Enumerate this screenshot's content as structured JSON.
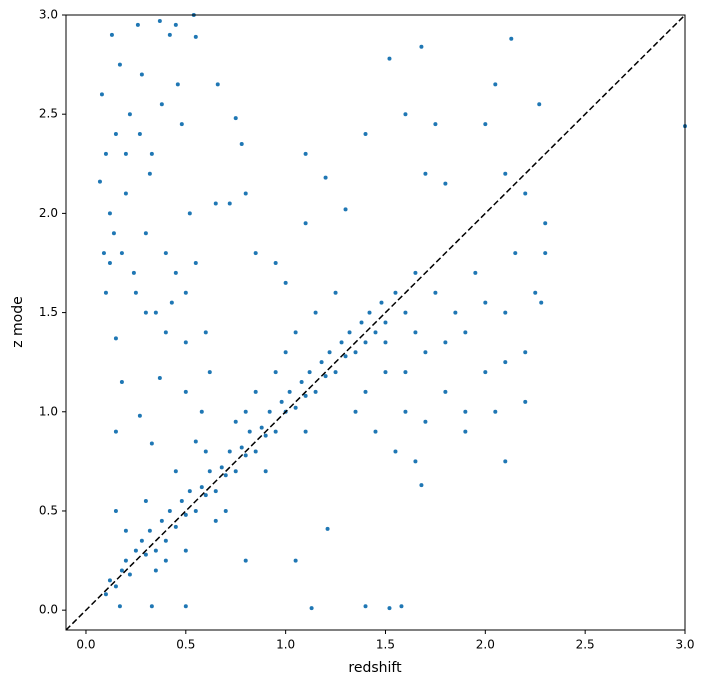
{
  "chart_data": {
    "type": "scatter",
    "xlabel": "redshift",
    "ylabel": "z mode",
    "color": "#1f77b4",
    "identity_line": true,
    "xlim": [
      -0.1,
      3.0
    ],
    "ylim": [
      -0.1,
      3.0
    ],
    "xticks": [
      {
        "value": 0,
        "label": "0.0"
      },
      0.5,
      {
        "value": 1,
        "label": "1.0"
      },
      1.5,
      {
        "value": 2,
        "label": "2.0"
      },
      2.5,
      {
        "value": 3,
        "label": "3.0"
      }
    ],
    "yticks": [
      {
        "value": 0,
        "label": "0.0"
      },
      0.5,
      {
        "value": 1,
        "label": "1.0"
      },
      1.5,
      {
        "value": 2,
        "label": "2.0"
      },
      2.5,
      {
        "value": 3,
        "label": "3.0"
      }
    ],
    "x": [
      0.1,
      0.12,
      0.15,
      0.18,
      0.2,
      0.22,
      0.25,
      0.28,
      0.3,
      0.32,
      0.35,
      0.38,
      0.4,
      0.42,
      0.45,
      0.48,
      0.5,
      0.52,
      0.55,
      0.58,
      0.6,
      0.62,
      0.65,
      0.68,
      0.7,
      0.72,
      0.75,
      0.78,
      0.8,
      0.82,
      0.85,
      0.88,
      0.9,
      0.92,
      0.95,
      0.98,
      1.0,
      1.02,
      1.05,
      1.08,
      1.1,
      1.12,
      1.15,
      1.18,
      1.2,
      1.22,
      1.25,
      1.28,
      1.3,
      1.32,
      1.35,
      1.38,
      1.4,
      1.42,
      1.45,
      1.48,
      1.5,
      1.55,
      1.6,
      1.65,
      0.3,
      0.4,
      0.5,
      0.6,
      0.7,
      0.8,
      0.9,
      1.0,
      1.1,
      0.2,
      0.15,
      0.35,
      0.45,
      0.55,
      0.65,
      0.75,
      0.85,
      0.95,
      1.05,
      1.15,
      1.25,
      0.95,
      0.85,
      1.0,
      1.4,
      1.5,
      1.6,
      1.7,
      1.8,
      1.9,
      2.0,
      2.1,
      2.2,
      2.25,
      1.45,
      1.55,
      1.65,
      1.75,
      1.85,
      1.95,
      2.05,
      2.15,
      2.28,
      1.6,
      1.7,
      1.8,
      1.9,
      2.0,
      2.1,
      2.2,
      2.3,
      1.35,
      1.5,
      1.65,
      2.1,
      1.68,
      1.9,
      2.2,
      2.0,
      2.1,
      2.05,
      2.13,
      2.27,
      1.8,
      1.7,
      1.6,
      1.75,
      2.3,
      1.4,
      1.52,
      1.68,
      1.1,
      1.2,
      1.3,
      1.1,
      3.0,
      1.13,
      1.4,
      1.52,
      1.58,
      1.05,
      0.5,
      0.33,
      0.8,
      1.21,
      0.17,
      0.08,
      0.1,
      0.12,
      0.15,
      0.18,
      0.2,
      0.22,
      0.25,
      0.28,
      0.3,
      0.32,
      0.35,
      0.38,
      0.4,
      0.42,
      0.45,
      0.48,
      0.5,
      0.52,
      0.55,
      0.1,
      0.14,
      0.17,
      0.24,
      0.33,
      0.46,
      0.37,
      0.13,
      0.26,
      0.07,
      0.6,
      0.5,
      0.65,
      0.72,
      0.78,
      0.8,
      0.75,
      0.66,
      0.5,
      0.15,
      0.18,
      0.15,
      0.37,
      0.27,
      0.33,
      0.58,
      0.62,
      0.4,
      0.43,
      0.09,
      0.2,
      0.27,
      0.55,
      0.54,
      0.45,
      0.3,
      0.12
    ],
    "values": [
      0.08,
      0.15,
      0.12,
      0.2,
      0.25,
      0.18,
      0.3,
      0.35,
      0.28,
      0.4,
      0.3,
      0.45,
      0.35,
      0.5,
      0.42,
      0.55,
      0.48,
      0.6,
      0.5,
      0.62,
      0.58,
      0.7,
      0.6,
      0.72,
      0.68,
      0.8,
      0.7,
      0.82,
      0.78,
      0.9,
      0.8,
      0.92,
      0.88,
      1.0,
      0.9,
      1.05,
      1.0,
      1.1,
      1.02,
      1.15,
      1.08,
      1.2,
      1.1,
      1.25,
      1.18,
      1.3,
      1.2,
      1.35,
      1.28,
      1.4,
      1.3,
      1.45,
      1.35,
      1.5,
      1.4,
      1.55,
      1.45,
      1.6,
      1.5,
      1.7,
      0.55,
      0.25,
      0.3,
      0.8,
      0.5,
      1.0,
      0.7,
      1.3,
      0.9,
      0.4,
      0.5,
      0.2,
      0.7,
      0.85,
      0.45,
      0.95,
      1.1,
      1.2,
      1.4,
      1.5,
      1.6,
      1.75,
      1.8,
      1.65,
      1.1,
      1.2,
      1.0,
      1.3,
      1.1,
      1.4,
      1.2,
      1.5,
      1.3,
      1.6,
      0.9,
      0.8,
      1.4,
      1.6,
      1.5,
      1.7,
      1.0,
      1.8,
      1.55,
      1.2,
      0.95,
      1.35,
      1.0,
      1.55,
      1.25,
      1.05,
      1.8,
      1.0,
      1.35,
      0.75,
      0.75,
      0.63,
      0.9,
      2.1,
      2.45,
      2.2,
      2.65,
      2.88,
      2.55,
      2.15,
      2.2,
      2.5,
      2.45,
      1.95,
      2.4,
      2.78,
      2.84,
      2.3,
      2.18,
      2.02,
      1.95,
      2.44,
      0.01,
      0.02,
      0.01,
      0.02,
      0.25,
      0.02,
      0.02,
      0.25,
      0.41,
      0.02,
      2.6,
      2.3,
      2.0,
      2.4,
      1.8,
      2.1,
      2.5,
      1.6,
      2.7,
      1.9,
      2.2,
      1.5,
      2.55,
      1.8,
      2.9,
      1.7,
      2.45,
      1.6,
      2.0,
      1.75,
      1.6,
      1.9,
      2.75,
      1.7,
      2.3,
      2.65,
      2.97,
      2.9,
      2.95,
      2.16,
      1.4,
      1.35,
      2.05,
      2.05,
      2.35,
      2.1,
      2.48,
      2.65,
      1.1,
      1.37,
      1.15,
      0.9,
      1.17,
      0.98,
      0.84,
      1.0,
      1.2,
      1.4,
      1.55,
      1.8,
      2.3,
      2.4,
      2.89,
      3.0,
      2.95,
      1.5,
      1.75
    ]
  }
}
